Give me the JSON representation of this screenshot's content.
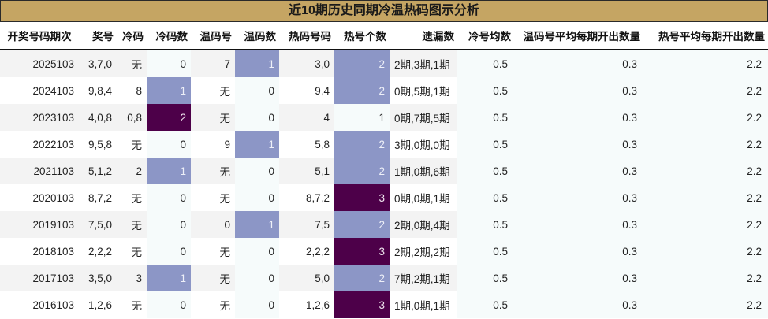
{
  "title": "近10期历史同期冷温热码图示分析",
  "colors": {
    "title_bg": "#c5a563",
    "heat_level_mid": "#8c96c6",
    "heat_level_high": "#4d0049",
    "cell_light": "#f6fbfb",
    "row_stripe": "#f3f3f3"
  },
  "headers": [
    "开奖号码期次",
    "奖号",
    "冷码",
    "冷码数",
    "温码号",
    "温码数",
    "热码号码",
    "热号个数",
    "遗漏数",
    "冷号均数",
    "温码号平均每期开出数量",
    "热号平均每期开出数量"
  ],
  "rows": [
    {
      "period": "2025103",
      "number": "3,7,0",
      "cold": "无",
      "cold_count": "0",
      "warm": "7",
      "warm_count": "1",
      "hot": "3,0",
      "hot_count": "2",
      "missed": "2期,3期,1期",
      "cold_avg": "0.5",
      "warm_avg": "0.3",
      "hot_avg": "2.2"
    },
    {
      "period": "2024103",
      "number": "9,8,4",
      "cold": "8",
      "cold_count": "1",
      "warm": "无",
      "warm_count": "0",
      "hot": "9,4",
      "hot_count": "2",
      "missed": "0期,5期,1期",
      "cold_avg": "0.5",
      "warm_avg": "0.3",
      "hot_avg": "2.2"
    },
    {
      "period": "2023103",
      "number": "4,0,8",
      "cold": "0,8",
      "cold_count": "2",
      "warm": "无",
      "warm_count": "0",
      "hot": "4",
      "hot_count": "1",
      "missed": "0期,7期,5期",
      "cold_avg": "0.5",
      "warm_avg": "0.3",
      "hot_avg": "2.2"
    },
    {
      "period": "2022103",
      "number": "9,5,8",
      "cold": "无",
      "cold_count": "0",
      "warm": "9",
      "warm_count": "1",
      "hot": "5,8",
      "hot_count": "2",
      "missed": "3期,0期,0期",
      "cold_avg": "0.5",
      "warm_avg": "0.3",
      "hot_avg": "2.2"
    },
    {
      "period": "2021103",
      "number": "5,1,2",
      "cold": "2",
      "cold_count": "1",
      "warm": "无",
      "warm_count": "0",
      "hot": "5,1",
      "hot_count": "2",
      "missed": "1期,0期,6期",
      "cold_avg": "0.5",
      "warm_avg": "0.3",
      "hot_avg": "2.2"
    },
    {
      "period": "2020103",
      "number": "8,7,2",
      "cold": "无",
      "cold_count": "0",
      "warm": "无",
      "warm_count": "0",
      "hot": "8,7,2",
      "hot_count": "3",
      "missed": "0期,0期,1期",
      "cold_avg": "0.5",
      "warm_avg": "0.3",
      "hot_avg": "2.2"
    },
    {
      "period": "2019103",
      "number": "7,5,0",
      "cold": "无",
      "cold_count": "0",
      "warm": "0",
      "warm_count": "1",
      "hot": "7,5",
      "hot_count": "2",
      "missed": "2期,0期,4期",
      "cold_avg": "0.5",
      "warm_avg": "0.3",
      "hot_avg": "2.2"
    },
    {
      "period": "2018103",
      "number": "2,2,2",
      "cold": "无",
      "cold_count": "0",
      "warm": "无",
      "warm_count": "0",
      "hot": "2,2,2",
      "hot_count": "3",
      "missed": "2期,2期,2期",
      "cold_avg": "0.5",
      "warm_avg": "0.3",
      "hot_avg": "2.2"
    },
    {
      "period": "2017103",
      "number": "3,5,0",
      "cold": "3",
      "cold_count": "1",
      "warm": "无",
      "warm_count": "0",
      "hot": "5,0",
      "hot_count": "2",
      "missed": "7期,2期,1期",
      "cold_avg": "0.5",
      "warm_avg": "0.3",
      "hot_avg": "2.2"
    },
    {
      "period": "2016103",
      "number": "1,2,6",
      "cold": "无",
      "cold_count": "0",
      "warm": "无",
      "warm_count": "0",
      "hot": "1,2,6",
      "hot_count": "3",
      "missed": "1期,0期,1期",
      "cold_avg": "0.5",
      "warm_avg": "0.3",
      "hot_avg": "2.2"
    }
  ]
}
